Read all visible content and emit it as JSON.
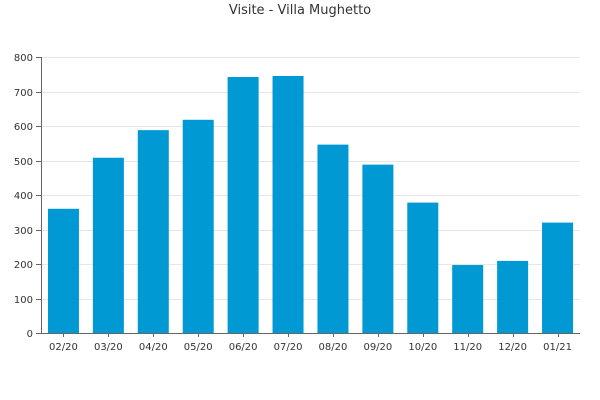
{
  "chart_data": {
    "type": "bar",
    "title": "Visite - Villa Mughetto",
    "xlabel": "",
    "ylabel": "",
    "categories": [
      "02/20",
      "03/20",
      "04/20",
      "05/20",
      "06/20",
      "07/20",
      "08/20",
      "09/20",
      "10/20",
      "11/20",
      "12/20",
      "01/21"
    ],
    "values": [
      360,
      508,
      588,
      618,
      742,
      745,
      546,
      488,
      378,
      197,
      209,
      320
    ],
    "ylim": [
      0,
      800
    ],
    "yticks": [
      0,
      100,
      200,
      300,
      400,
      500,
      600,
      700,
      800
    ],
    "grid": true,
    "legend": "none",
    "bar_color": "#0099D4",
    "grid_color": "#E6E6E6",
    "axis_color": "#666666"
  }
}
